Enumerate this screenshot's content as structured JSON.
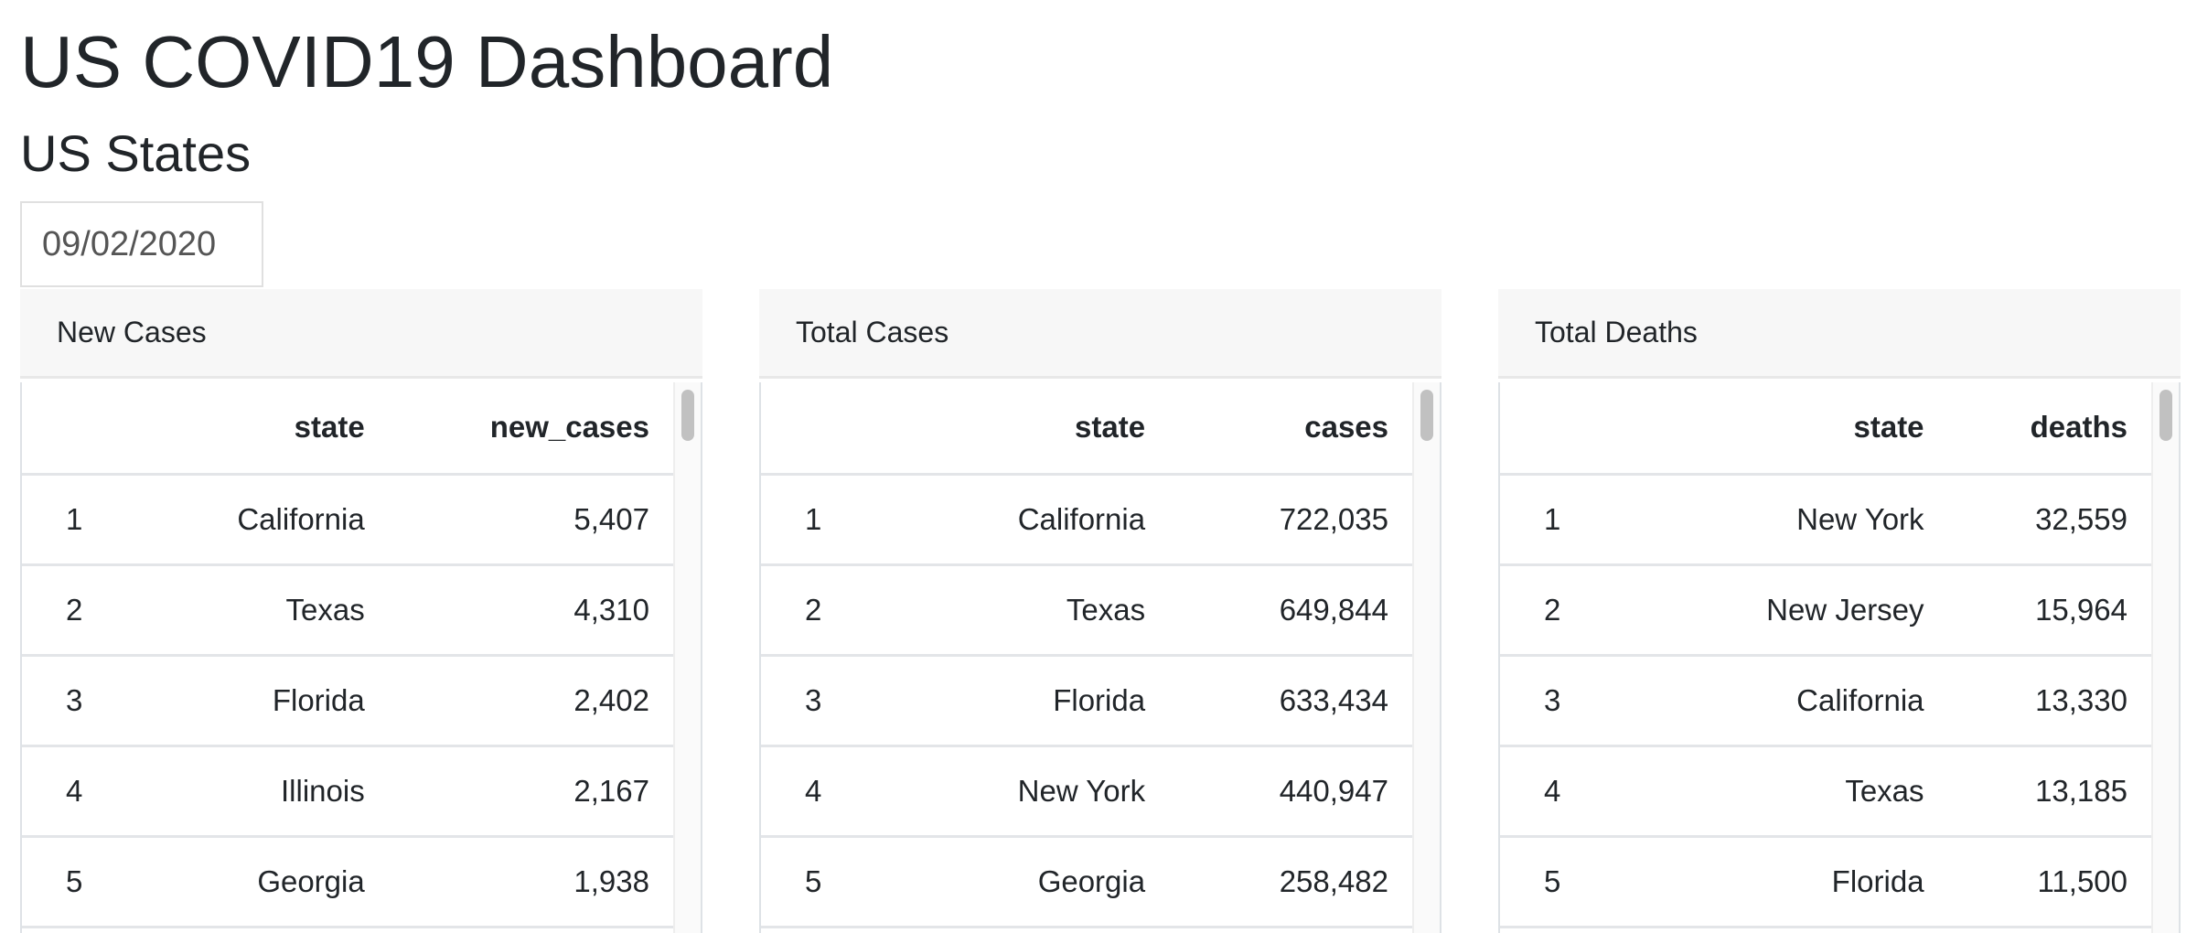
{
  "header": {
    "title": "US COVID19 Dashboard",
    "subtitle": "US States"
  },
  "date_picker": {
    "value": "09/02/2020"
  },
  "panels": [
    {
      "title": "New Cases",
      "columns": [
        "",
        "state",
        "new_cases"
      ],
      "rows": [
        [
          "1",
          "California",
          "5,407"
        ],
        [
          "2",
          "Texas",
          "4,310"
        ],
        [
          "3",
          "Florida",
          "2,402"
        ],
        [
          "4",
          "Illinois",
          "2,167"
        ],
        [
          "5",
          "Georgia",
          "1,938"
        ]
      ]
    },
    {
      "title": "Total Cases",
      "columns": [
        "",
        "state",
        "cases"
      ],
      "rows": [
        [
          "1",
          "California",
          "722,035"
        ],
        [
          "2",
          "Texas",
          "649,844"
        ],
        [
          "3",
          "Florida",
          "633,434"
        ],
        [
          "4",
          "New York",
          "440,947"
        ],
        [
          "5",
          "Georgia",
          "258,482"
        ]
      ]
    },
    {
      "title": "Total Deaths",
      "columns": [
        "",
        "state",
        "deaths"
      ],
      "rows": [
        [
          "1",
          "New York",
          "32,559"
        ],
        [
          "2",
          "New Jersey",
          "15,964"
        ],
        [
          "3",
          "California",
          "13,330"
        ],
        [
          "4",
          "Texas",
          "13,185"
        ],
        [
          "5",
          "Florida",
          "11,500"
        ]
      ]
    }
  ]
}
